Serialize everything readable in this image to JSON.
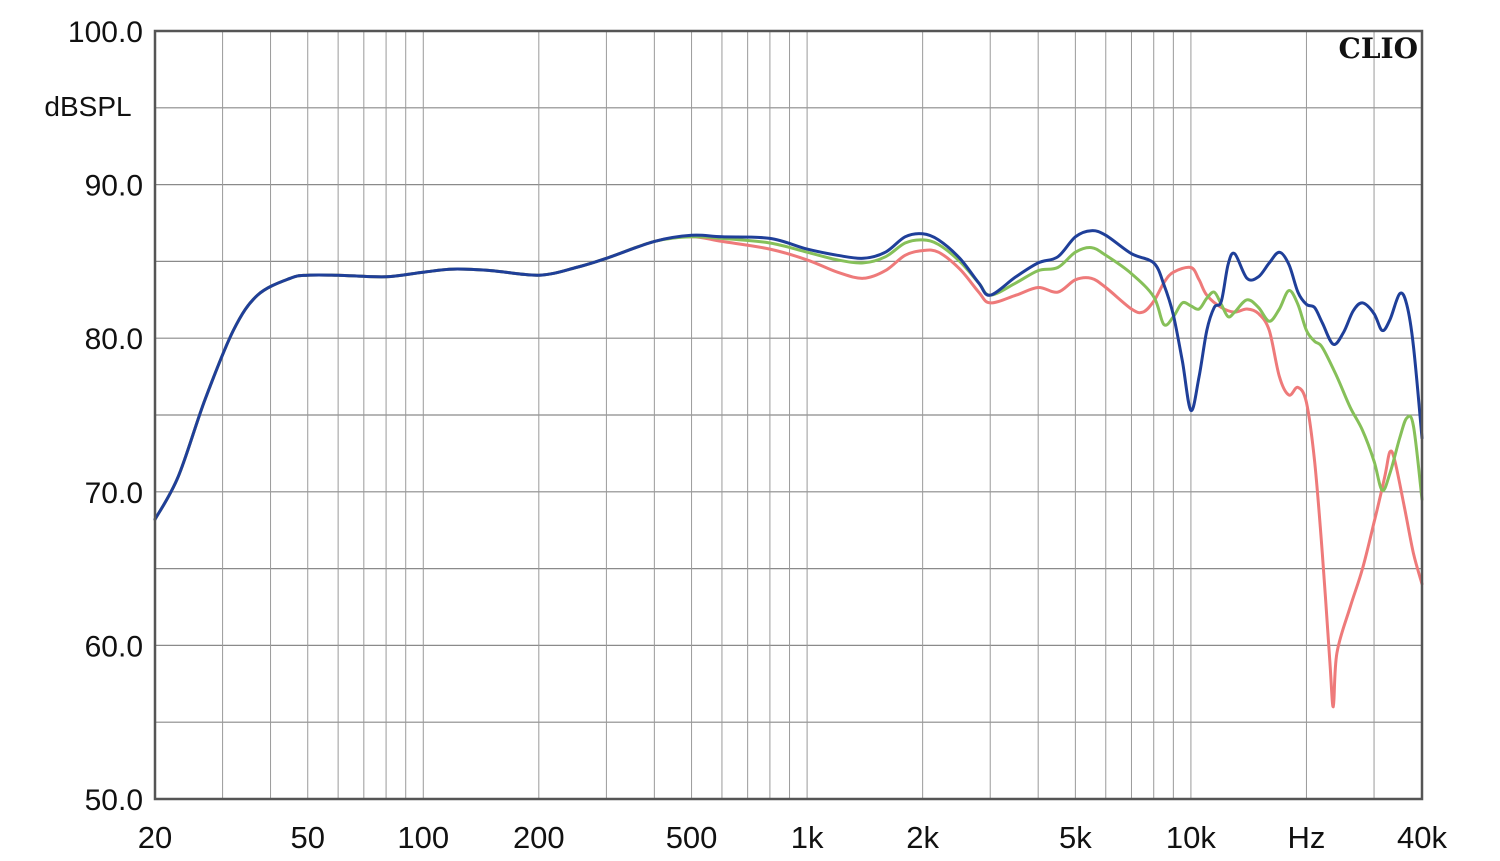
{
  "chart_data": {
    "type": "line",
    "brand": "CLIO",
    "ylabel": "dBSPL",
    "xlabel": "Hz",
    "x_scale": "log",
    "xlim": [
      20,
      40000
    ],
    "ylim": [
      50,
      100
    ],
    "grid": true,
    "y_tick_labels": [
      "100.0",
      "90.0",
      "80.0",
      "70.0",
      "60.0",
      "50.0"
    ],
    "x_tick_labels": [
      {
        "value": 20,
        "label": "20"
      },
      {
        "value": 50,
        "label": "50"
      },
      {
        "value": 100,
        "label": "100"
      },
      {
        "value": 200,
        "label": "200"
      },
      {
        "value": 500,
        "label": "500"
      },
      {
        "value": 1000,
        "label": "1k"
      },
      {
        "value": 2000,
        "label": "2k"
      },
      {
        "value": 5000,
        "label": "5k"
      },
      {
        "value": 10000,
        "label": "10k"
      },
      {
        "value": 20000,
        "label": "Hz"
      },
      {
        "value": 40000,
        "label": "40k"
      }
    ],
    "series": [
      {
        "color": "#ee7a7a",
        "points": [
          [
            20,
            68.2
          ],
          [
            23,
            71
          ],
          [
            27,
            76
          ],
          [
            32,
            80.5
          ],
          [
            37,
            82.8
          ],
          [
            45,
            83.9
          ],
          [
            50,
            84.1
          ],
          [
            60,
            84.1
          ],
          [
            80,
            84.0
          ],
          [
            100,
            84.3
          ],
          [
            120,
            84.5
          ],
          [
            150,
            84.4
          ],
          [
            200,
            84.1
          ],
          [
            250,
            84.6
          ],
          [
            300,
            85.2
          ],
          [
            400,
            86.3
          ],
          [
            500,
            86.6
          ],
          [
            600,
            86.3
          ],
          [
            800,
            85.8
          ],
          [
            1000,
            85.1
          ],
          [
            1200,
            84.3
          ],
          [
            1400,
            83.9
          ],
          [
            1600,
            84.4
          ],
          [
            1800,
            85.4
          ],
          [
            2000,
            85.7
          ],
          [
            2200,
            85.6
          ],
          [
            2500,
            84.5
          ],
          [
            2800,
            83.0
          ],
          [
            3000,
            82.3
          ],
          [
            3500,
            82.8
          ],
          [
            4000,
            83.3
          ],
          [
            4500,
            83.0
          ],
          [
            5000,
            83.8
          ],
          [
            5500,
            83.9
          ],
          [
            6000,
            83.3
          ],
          [
            7000,
            81.9
          ],
          [
            7500,
            81.7
          ],
          [
            8000,
            82.4
          ],
          [
            8500,
            83.6
          ],
          [
            9000,
            84.3
          ],
          [
            10000,
            84.6
          ],
          [
            10500,
            83.8
          ],
          [
            11000,
            82.8
          ],
          [
            12000,
            82.0
          ],
          [
            13000,
            81.7
          ],
          [
            14000,
            81.9
          ],
          [
            15000,
            81.6
          ],
          [
            16000,
            80.5
          ],
          [
            17000,
            77.5
          ],
          [
            18000,
            76.3
          ],
          [
            19000,
            76.8
          ],
          [
            20000,
            75.8
          ],
          [
            21000,
            72
          ],
          [
            22000,
            66
          ],
          [
            23000,
            59
          ],
          [
            23500,
            56
          ],
          [
            24000,
            59.5
          ],
          [
            26000,
            62.5
          ],
          [
            28000,
            65
          ],
          [
            30000,
            68
          ],
          [
            32000,
            71
          ],
          [
            33000,
            72.6
          ],
          [
            34000,
            72
          ],
          [
            36000,
            69
          ],
          [
            38000,
            66
          ],
          [
            40000,
            64
          ]
        ]
      },
      {
        "color": "#86c059",
        "points": [
          [
            20,
            68.2
          ],
          [
            23,
            71
          ],
          [
            27,
            76
          ],
          [
            32,
            80.5
          ],
          [
            37,
            82.8
          ],
          [
            45,
            83.9
          ],
          [
            50,
            84.1
          ],
          [
            60,
            84.1
          ],
          [
            80,
            84.0
          ],
          [
            100,
            84.3
          ],
          [
            120,
            84.5
          ],
          [
            150,
            84.4
          ],
          [
            200,
            84.1
          ],
          [
            250,
            84.6
          ],
          [
            300,
            85.2
          ],
          [
            400,
            86.3
          ],
          [
            500,
            86.6
          ],
          [
            600,
            86.5
          ],
          [
            800,
            86.2
          ],
          [
            1000,
            85.6
          ],
          [
            1200,
            85.1
          ],
          [
            1400,
            84.9
          ],
          [
            1600,
            85.3
          ],
          [
            1800,
            86.2
          ],
          [
            2000,
            86.4
          ],
          [
            2200,
            86.1
          ],
          [
            2500,
            85.0
          ],
          [
            2800,
            83.6
          ],
          [
            3000,
            82.8
          ],
          [
            3500,
            83.6
          ],
          [
            4000,
            84.4
          ],
          [
            4500,
            84.6
          ],
          [
            5000,
            85.6
          ],
          [
            5500,
            85.9
          ],
          [
            6000,
            85.4
          ],
          [
            7000,
            84.2
          ],
          [
            8000,
            82.7
          ],
          [
            8500,
            80.9
          ],
          [
            9000,
            81.4
          ],
          [
            9500,
            82.3
          ],
          [
            10000,
            82.1
          ],
          [
            10500,
            81.9
          ],
          [
            11000,
            82.6
          ],
          [
            11500,
            83.0
          ],
          [
            12000,
            82.2
          ],
          [
            12500,
            81.4
          ],
          [
            13000,
            81.7
          ],
          [
            14000,
            82.5
          ],
          [
            15000,
            82.0
          ],
          [
            16000,
            81.1
          ],
          [
            17000,
            81.9
          ],
          [
            18000,
            83.1
          ],
          [
            19000,
            82.2
          ],
          [
            20000,
            80.5
          ],
          [
            21000,
            79.8
          ],
          [
            22000,
            79.4
          ],
          [
            24000,
            77.5
          ],
          [
            26000,
            75.5
          ],
          [
            28000,
            74.0
          ],
          [
            30000,
            72.0
          ],
          [
            31500,
            70.1
          ],
          [
            33000,
            71.2
          ],
          [
            35000,
            73.5
          ],
          [
            36500,
            74.8
          ],
          [
            38000,
            74.3
          ],
          [
            40000,
            69.5
          ]
        ]
      },
      {
        "color": "#1f3f99",
        "points": [
          [
            20,
            68.2
          ],
          [
            23,
            71
          ],
          [
            27,
            76
          ],
          [
            32,
            80.5
          ],
          [
            37,
            82.8
          ],
          [
            45,
            83.9
          ],
          [
            50,
            84.1
          ],
          [
            60,
            84.1
          ],
          [
            80,
            84.0
          ],
          [
            100,
            84.3
          ],
          [
            120,
            84.5
          ],
          [
            150,
            84.4
          ],
          [
            200,
            84.1
          ],
          [
            250,
            84.6
          ],
          [
            300,
            85.2
          ],
          [
            400,
            86.3
          ],
          [
            500,
            86.7
          ],
          [
            600,
            86.6
          ],
          [
            800,
            86.5
          ],
          [
            1000,
            85.8
          ],
          [
            1200,
            85.4
          ],
          [
            1400,
            85.2
          ],
          [
            1600,
            85.6
          ],
          [
            1800,
            86.6
          ],
          [
            2000,
            86.8
          ],
          [
            2200,
            86.4
          ],
          [
            2500,
            85.2
          ],
          [
            2800,
            83.6
          ],
          [
            3000,
            82.8
          ],
          [
            3500,
            84.0
          ],
          [
            4000,
            84.9
          ],
          [
            4500,
            85.3
          ],
          [
            5000,
            86.6
          ],
          [
            5500,
            87.0
          ],
          [
            6000,
            86.7
          ],
          [
            7000,
            85.5
          ],
          [
            8000,
            84.9
          ],
          [
            8500,
            83.5
          ],
          [
            9000,
            81.5
          ],
          [
            9500,
            78.5
          ],
          [
            10000,
            75.3
          ],
          [
            10500,
            77.5
          ],
          [
            11000,
            80.5
          ],
          [
            11500,
            82.0
          ],
          [
            12000,
            82.4
          ],
          [
            12500,
            84.8
          ],
          [
            13000,
            85.5
          ],
          [
            14000,
            83.9
          ],
          [
            15000,
            84.0
          ],
          [
            16000,
            84.9
          ],
          [
            17000,
            85.6
          ],
          [
            18000,
            84.8
          ],
          [
            19000,
            83.0
          ],
          [
            20000,
            82.2
          ],
          [
            21000,
            82.0
          ],
          [
            22000,
            81.0
          ],
          [
            23500,
            79.6
          ],
          [
            25000,
            80.4
          ],
          [
            26500,
            81.8
          ],
          [
            28000,
            82.3
          ],
          [
            30000,
            81.6
          ],
          [
            31500,
            80.5
          ],
          [
            33000,
            81.2
          ],
          [
            35000,
            82.9
          ],
          [
            36500,
            82.2
          ],
          [
            38000,
            79.5
          ],
          [
            40000,
            73.5
          ]
        ]
      }
    ]
  }
}
